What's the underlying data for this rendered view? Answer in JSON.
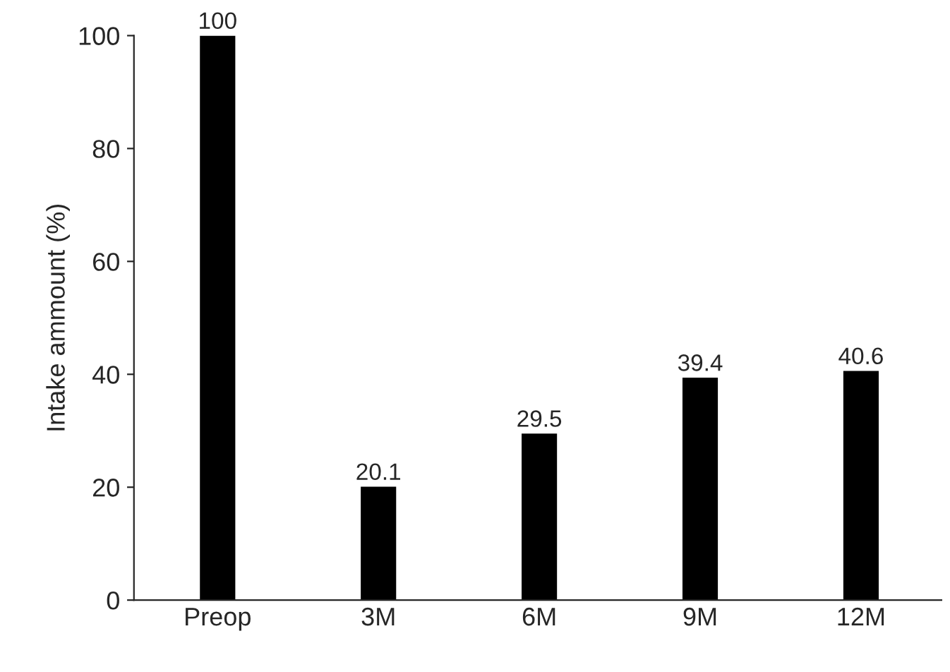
{
  "chart_data": {
    "type": "bar",
    "ylabel": "Intake ammount (%)",
    "categories": [
      "Preop",
      "3M",
      "6M",
      "9M",
      "12M"
    ],
    "values": [
      100,
      20.1,
      29.5,
      39.4,
      40.6
    ],
    "color": "#000000",
    "ylim": [
      0,
      100
    ],
    "yticks": [
      0,
      20,
      40,
      60,
      80,
      100
    ],
    "data_labels": true,
    "grid": false,
    "legend": false
  }
}
